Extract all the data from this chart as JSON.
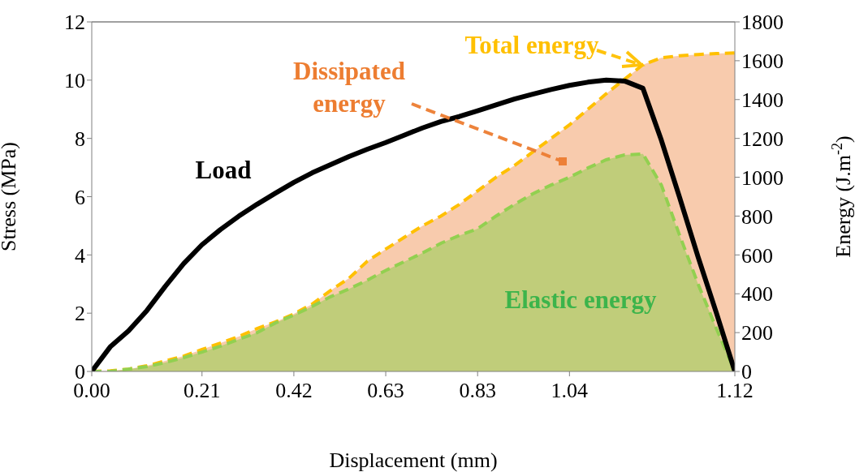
{
  "chart_data": {
    "type": "line",
    "xlabel": "Displacement (mm)",
    "ylabel": "Stress (MPa)",
    "y2label": "Energy (J.m$^{-2}$)",
    "annotations": [
      "Dissipated energy"
    ],
    "categories": [
      "0.00",
      null,
      null,
      null,
      null,
      null,
      "0.21",
      null,
      null,
      null,
      null,
      "0.42",
      null,
      null,
      null,
      null,
      "0.63",
      null,
      null,
      null,
      null,
      "0.83",
      null,
      null,
      null,
      null,
      "1.04",
      null,
      null,
      null,
      null,
      null,
      null,
      null,
      null,
      "1.12"
    ],
    "ylim": [
      0,
      12
    ],
    "yticks": [
      0,
      2,
      4,
      6,
      8,
      10,
      12
    ],
    "y2lim": [
      0,
      1800
    ],
    "y2ticks": [
      0,
      200,
      400,
      600,
      800,
      1000,
      1200,
      1400,
      1600,
      1800
    ],
    "series": [
      {
        "name": "Total energy",
        "type": "area",
        "axis": "y2",
        "color": "#ffc000",
        "line_style": "dashed",
        "values": [
          0,
          3,
          12,
          29,
          54,
          79,
          113,
          146,
          180,
          221,
          255,
          296,
          347,
          417,
          480,
          568,
          630,
          690,
          750,
          800,
          860,
          930,
          1000,
          1060,
          1130,
          1200,
          1270,
          1350,
          1430,
          1505,
          1580,
          1615,
          1626,
          1632,
          1637,
          1640
        ]
      },
      {
        "name": "Elastic energy",
        "type": "area",
        "axis": "y2",
        "color": "#92d050",
        "line_style": "dashed",
        "values": [
          0,
          0,
          12,
          25,
          46,
          71,
          100,
          130,
          165,
          200,
          250,
          290,
          335,
          385,
          425,
          470,
          520,
          565,
          610,
          660,
          700,
          735,
          800,
          860,
          915,
          960,
          1000,
          1048,
          1090,
          1115,
          1120,
          960,
          700,
          450,
          220,
          0
        ]
      },
      {
        "name": "Load",
        "color": "#000000",
        "line_style": "solid",
        "values": [
          0,
          0.84,
          1.39,
          2.09,
          2.92,
          3.7,
          4.35,
          4.87,
          5.33,
          5.74,
          6.12,
          6.49,
          6.82,
          7.1,
          7.38,
          7.63,
          7.86,
          8.11,
          8.36,
          8.58,
          8.75,
          8.95,
          9.15,
          9.35,
          9.52,
          9.68,
          9.82,
          9.93,
          10.0,
          9.97,
          9.72,
          7.94,
          5.96,
          3.93,
          2.0,
          0
        ]
      }
    ]
  }
}
